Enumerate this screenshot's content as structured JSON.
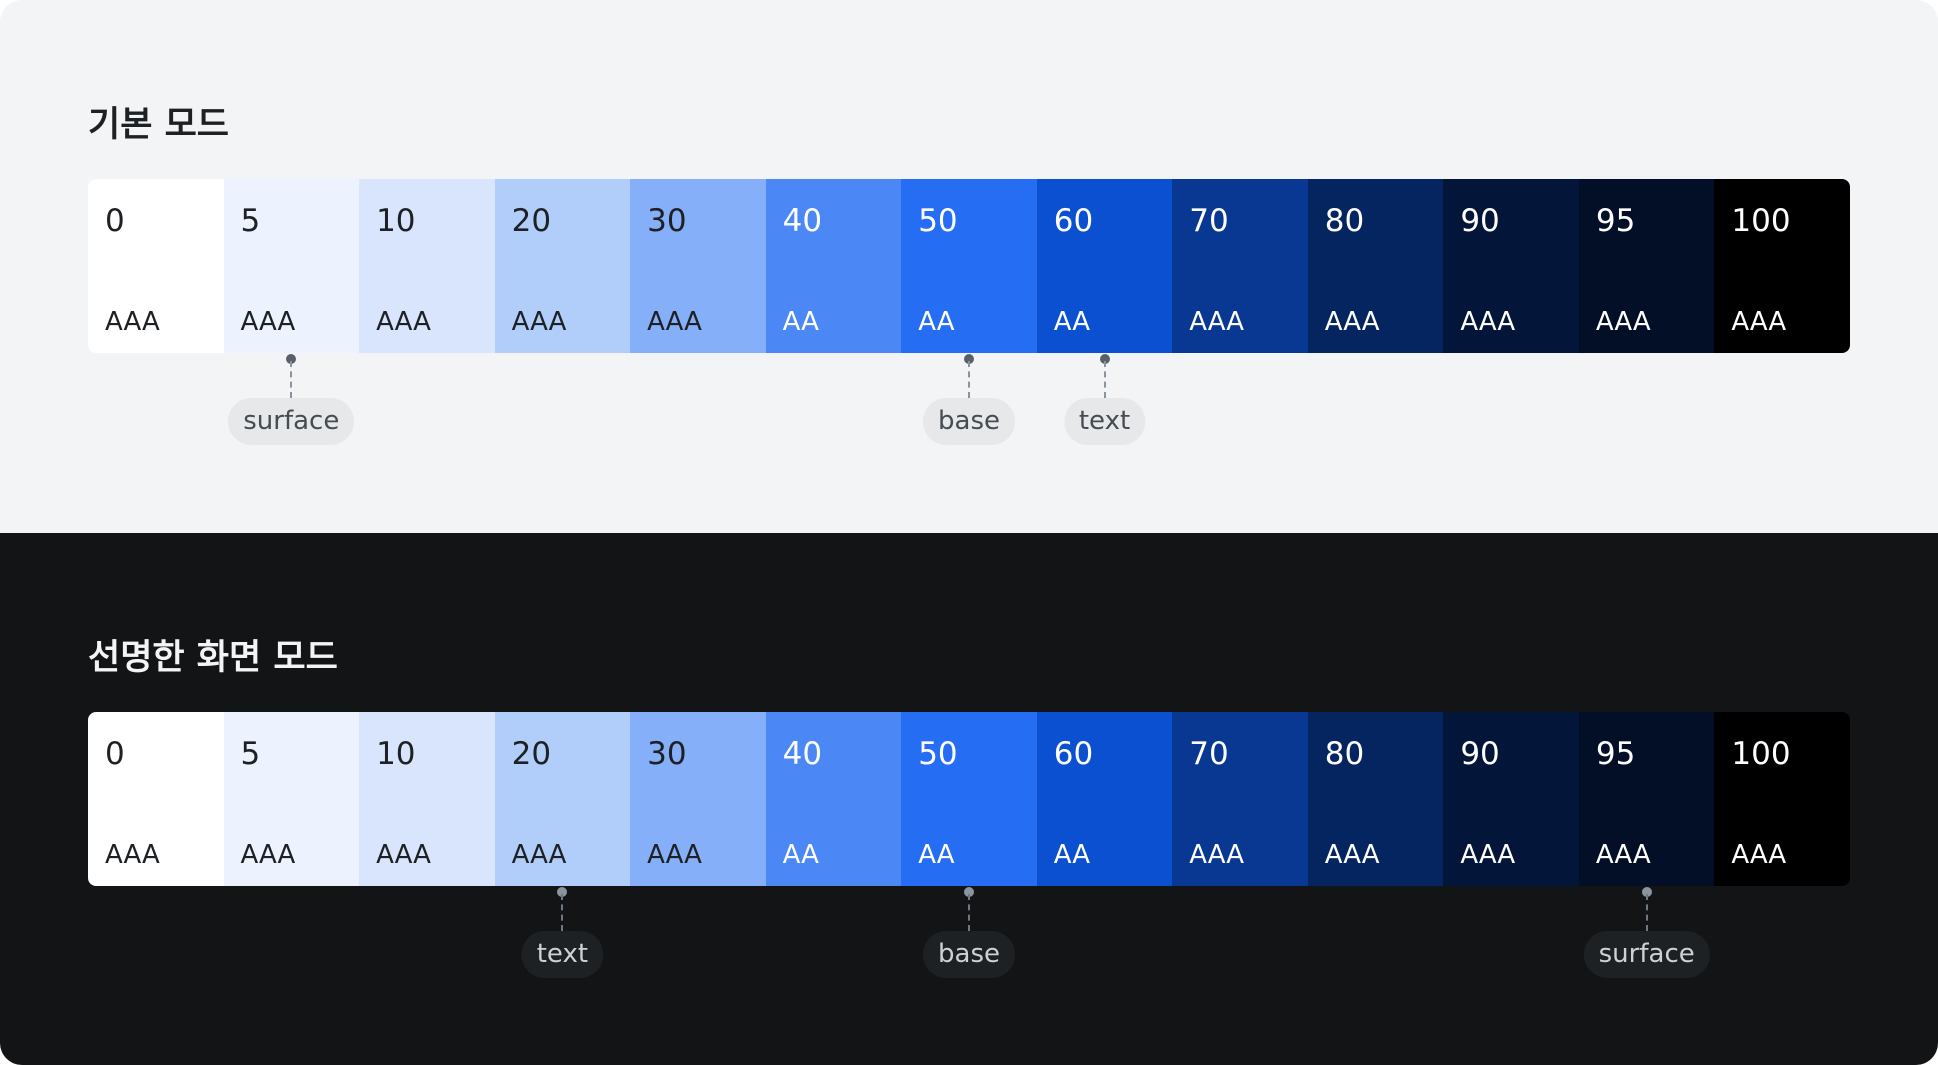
{
  "sections": [
    {
      "title": "기본 모드",
      "theme": "light",
      "swatches": [
        {
          "step": "0",
          "rating": "AAA",
          "color": "#ffffff",
          "fg": "#1e2124"
        },
        {
          "step": "5",
          "rating": "AAA",
          "color": "#ecf2fe",
          "fg": "#1e2124",
          "tag": "surface"
        },
        {
          "step": "10",
          "rating": "AAA",
          "color": "#d8e5fd",
          "fg": "#1e2124"
        },
        {
          "step": "20",
          "rating": "AAA",
          "color": "#b1cefb",
          "fg": "#1e2124"
        },
        {
          "step": "30",
          "rating": "AAA",
          "color": "#86aff9",
          "fg": "#1e2124"
        },
        {
          "step": "40",
          "rating": "AA",
          "color": "#4c87f6",
          "fg": "#ffffff"
        },
        {
          "step": "50",
          "rating": "AA",
          "color": "#256ef4",
          "fg": "#ffffff",
          "tag": "base"
        },
        {
          "step": "60",
          "rating": "AA",
          "color": "#0b50d0",
          "fg": "#ffffff",
          "tag": "text"
        },
        {
          "step": "70",
          "rating": "AAA",
          "color": "#083891",
          "fg": "#ffffff"
        },
        {
          "step": "80",
          "rating": "AAA",
          "color": "#052561",
          "fg": "#ffffff"
        },
        {
          "step": "90",
          "rating": "AAA",
          "color": "#03163a",
          "fg": "#ffffff"
        },
        {
          "step": "95",
          "rating": "AAA",
          "color": "#020f27",
          "fg": "#ffffff"
        },
        {
          "step": "100",
          "rating": "AAA",
          "color": "#000000",
          "fg": "#ffffff"
        }
      ]
    },
    {
      "title": "선명한 화면 모드",
      "theme": "dark",
      "swatches": [
        {
          "step": "0",
          "rating": "AAA",
          "color": "#ffffff",
          "fg": "#1e2124"
        },
        {
          "step": "5",
          "rating": "AAA",
          "color": "#ecf2fe",
          "fg": "#1e2124"
        },
        {
          "step": "10",
          "rating": "AAA",
          "color": "#d8e5fd",
          "fg": "#1e2124"
        },
        {
          "step": "20",
          "rating": "AAA",
          "color": "#b1cefb",
          "fg": "#1e2124",
          "tag": "text"
        },
        {
          "step": "30",
          "rating": "AAA",
          "color": "#86aff9",
          "fg": "#1e2124"
        },
        {
          "step": "40",
          "rating": "AA",
          "color": "#4c87f6",
          "fg": "#ffffff"
        },
        {
          "step": "50",
          "rating": "AA",
          "color": "#256ef4",
          "fg": "#ffffff",
          "tag": "base"
        },
        {
          "step": "60",
          "rating": "AA",
          "color": "#0b50d0",
          "fg": "#ffffff"
        },
        {
          "step": "70",
          "rating": "AAA",
          "color": "#083891",
          "fg": "#ffffff"
        },
        {
          "step": "80",
          "rating": "AAA",
          "color": "#052561",
          "fg": "#ffffff"
        },
        {
          "step": "90",
          "rating": "AAA",
          "color": "#03163a",
          "fg": "#ffffff"
        },
        {
          "step": "95",
          "rating": "AAA",
          "color": "#020f27",
          "fg": "#ffffff",
          "tag": "surface"
        },
        {
          "step": "100",
          "rating": "AAA",
          "color": "#000000",
          "fg": "#ffffff"
        }
      ]
    }
  ]
}
